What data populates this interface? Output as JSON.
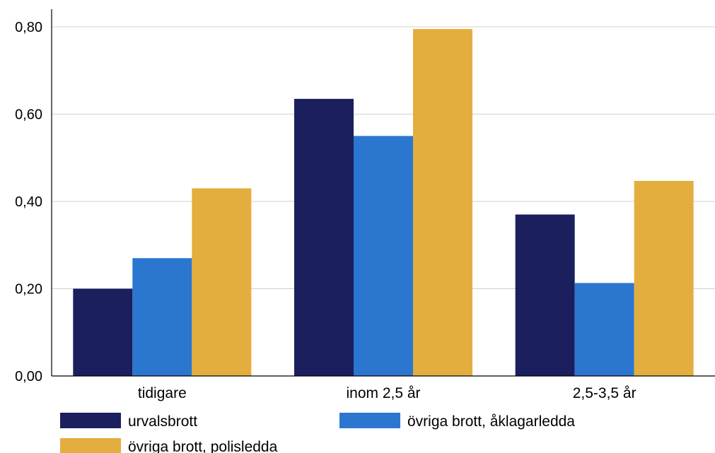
{
  "chart_data": {
    "type": "bar",
    "categories": [
      "tidigare",
      "inom 2,5 år",
      "2,5-3,5 år"
    ],
    "series": [
      {
        "name": "urvalsbrott",
        "values": [
          0.2,
          0.635,
          0.37
        ],
        "color": "#1b1f5e"
      },
      {
        "name": "övriga brott, åklagarledda",
        "values": [
          0.27,
          0.55,
          0.213
        ],
        "color": "#2b77d0"
      },
      {
        "name": "övriga brott, polisledda",
        "values": [
          0.43,
          0.795,
          0.447
        ],
        "color": "#e3ae3e"
      }
    ],
    "ylim": [
      0,
      0.8
    ],
    "yticks": [
      "0,00",
      "0,20",
      "0,40",
      "0,60",
      "0,80"
    ],
    "grid": true,
    "legend_position": "bottom"
  }
}
